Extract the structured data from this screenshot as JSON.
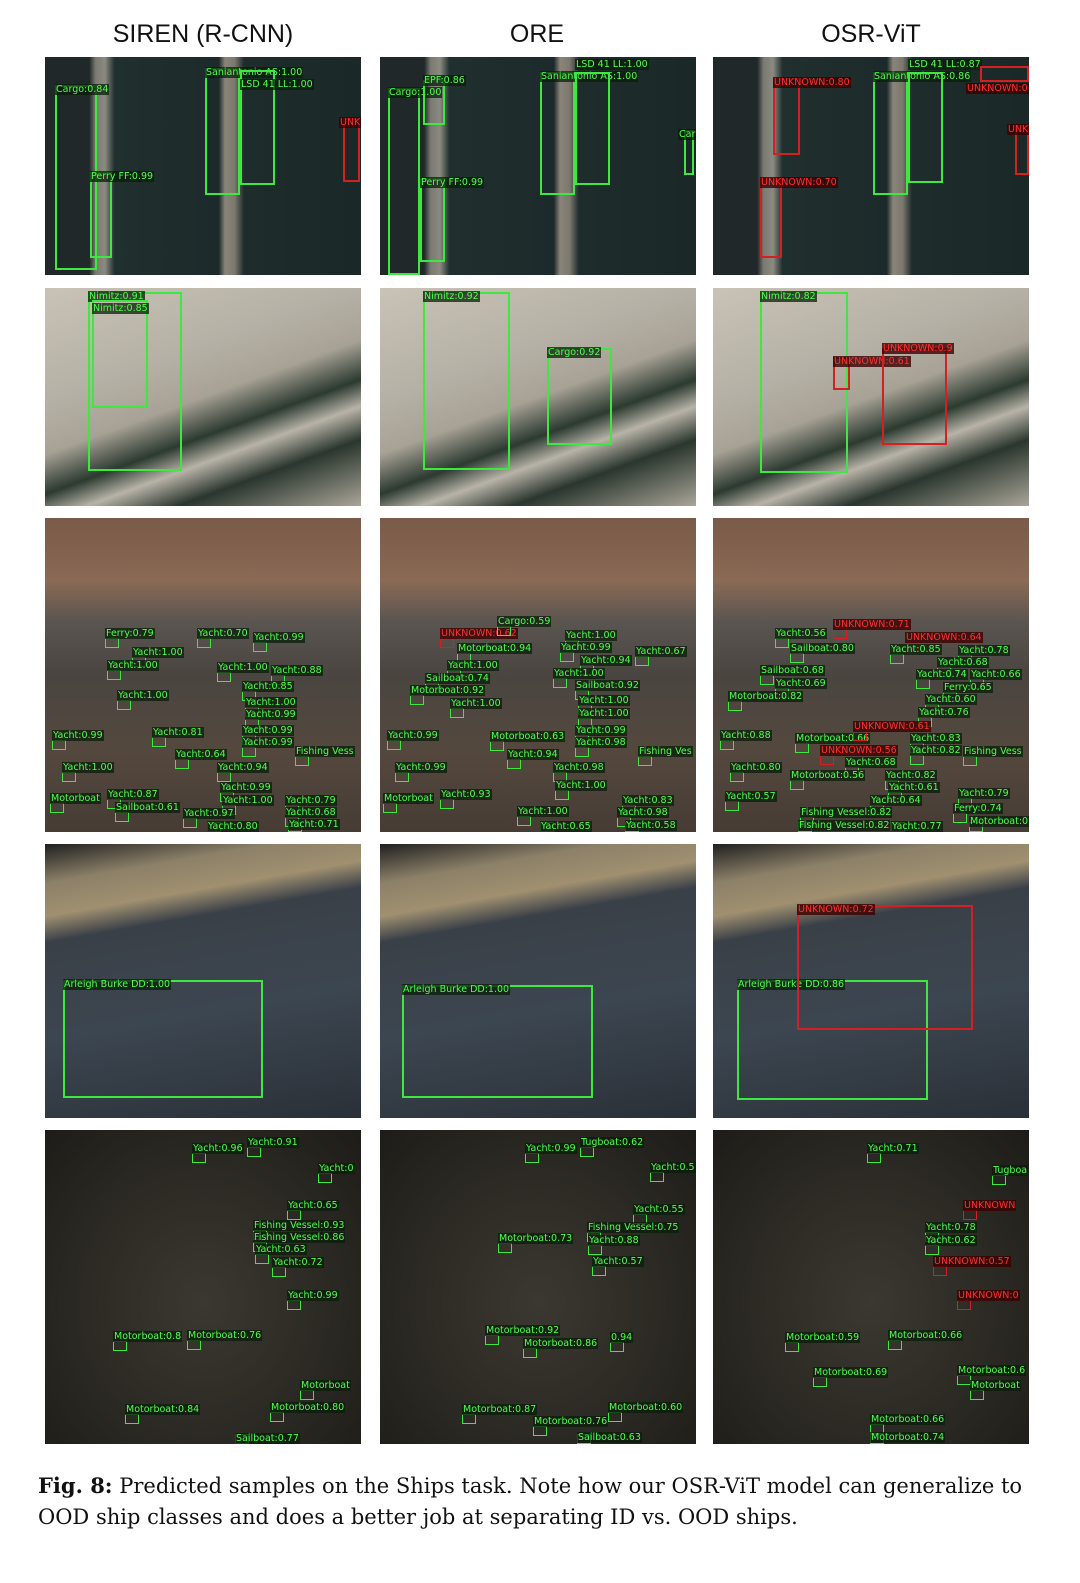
{
  "columns": [
    "SIREN (R-CNN)",
    "ORE",
    "OSR-ViT"
  ],
  "rows": [
    {
      "panels": [
        [
          {
            "l": "Cargo:0.84",
            "u": 0
          },
          {
            "l": "Perry FF:0.99",
            "u": 0
          },
          {
            "l": "Saniantonio AS:1.00",
            "u": 0
          },
          {
            "l": "LSD 41 LL:1.00",
            "u": 0
          },
          {
            "l": "UNK",
            "u": 1
          }
        ],
        [
          {
            "l": "Cargo:1.00",
            "u": 0
          },
          {
            "l": "EPF:0.86",
            "u": 0
          },
          {
            "l": "Perry FF:0.99",
            "u": 0
          },
          {
            "l": "Saniantonio AS:1.00",
            "u": 0
          },
          {
            "l": "LSD 41 LL:1.00",
            "u": 0
          },
          {
            "l": "Car",
            "u": 0
          }
        ],
        [
          {
            "l": "UNKNOWN:0.80",
            "u": 1
          },
          {
            "l": "UNKNOWN:0.70",
            "u": 1
          },
          {
            "l": "Saniantonio AS:0.86",
            "u": 0
          },
          {
            "l": "LSD 41 LL:0.87",
            "u": 0
          },
          {
            "l": "UNKNOWN:0",
            "u": 1
          },
          {
            "l": "UNK",
            "u": 1
          }
        ]
      ]
    },
    {
      "panels": [
        [
          {
            "l": "Nimitz:0.91",
            "u": 0
          },
          {
            "l": "Nimitz:0.85",
            "u": 0
          }
        ],
        [
          {
            "l": "Nimitz:0.92",
            "u": 0
          },
          {
            "l": "Cargo:0.92",
            "u": 0
          }
        ],
        [
          {
            "l": "Nimitz:0.82",
            "u": 0
          },
          {
            "l": "UNKNOWN:0.61",
            "u": 1
          },
          {
            "l": "UNKNOWN:0.9",
            "u": 1
          }
        ]
      ]
    },
    {
      "panels": [
        [
          {
            "l": "Ferry:0.79",
            "u": 0
          },
          {
            "l": "Yacht:0.70",
            "u": 0
          },
          {
            "l": "Yacht:0.99",
            "u": 0
          },
          {
            "l": "Yacht:1.00",
            "u": 0
          },
          {
            "l": "Yacht:1.00",
            "u": 0
          },
          {
            "l": "Yacht:1.00",
            "u": 0
          },
          {
            "l": "Yacht:0.88",
            "u": 0
          },
          {
            "l": "Yacht:0.85",
            "u": 0
          },
          {
            "l": "Yacht:1.00",
            "u": 0
          },
          {
            "l": "Yacht:1.00",
            "u": 0
          },
          {
            "l": "Yacht:0.99",
            "u": 0
          },
          {
            "l": "Yacht:0.81",
            "u": 0
          },
          {
            "l": "Yacht:0.99",
            "u": 0
          },
          {
            "l": "Yacht:0.99",
            "u": 0
          },
          {
            "l": "Yacht:0.99",
            "u": 0
          },
          {
            "l": "Yacht:0.64",
            "u": 0
          },
          {
            "l": "Fishing Vess",
            "u": 0
          },
          {
            "l": "Yacht:0.94",
            "u": 0
          },
          {
            "l": "Yacht:1.00",
            "u": 0
          },
          {
            "l": "Yacht:0.99",
            "u": 0
          },
          {
            "l": "Motorboat",
            "u": 0
          },
          {
            "l": "Yacht:0.87",
            "u": 0
          },
          {
            "l": "Sailboat:0.61",
            "u": 0
          },
          {
            "l": "Yacht:1.00",
            "u": 0
          },
          {
            "l": "Yacht:0.79",
            "u": 0
          },
          {
            "l": "Yacht:0.68",
            "u": 0
          },
          {
            "l": "Yacht:0.97",
            "u": 0
          },
          {
            "l": "Yacht:0.71",
            "u": 0
          },
          {
            "l": "Yacht:0.80",
            "u": 0
          }
        ],
        [
          {
            "l": "UNKNOWN:0.62",
            "u": 1
          },
          {
            "l": "Cargo:0.59",
            "u": 0
          },
          {
            "l": "Yacht:1.00",
            "u": 0
          },
          {
            "l": "Motorboat:0.94",
            "u": 0
          },
          {
            "l": "Yacht:0.99",
            "u": 0
          },
          {
            "l": "Yacht:0.94",
            "u": 0
          },
          {
            "l": "Yacht:0.67",
            "u": 0
          },
          {
            "l": "Yacht:1.00",
            "u": 0
          },
          {
            "l": "Yacht:1.00",
            "u": 0
          },
          {
            "l": "Sailboat:0.74",
            "u": 0
          },
          {
            "l": "Motorboat:0.92",
            "u": 0
          },
          {
            "l": "Sailboat:0.92",
            "u": 0
          },
          {
            "l": "Yacht:1.00",
            "u": 0
          },
          {
            "l": "Yacht:1.00",
            "u": 0
          },
          {
            "l": "Yacht:1.00",
            "u": 0
          },
          {
            "l": "Yacht:0.99",
            "u": 0
          },
          {
            "l": "Motorboat:0.63",
            "u": 0
          },
          {
            "l": "Yacht:0.99",
            "u": 0
          },
          {
            "l": "Yacht:0.98",
            "u": 0
          },
          {
            "l": "Yacht:0.94",
            "u": 0
          },
          {
            "l": "Fishing Ves",
            "u": 0
          },
          {
            "l": "Yacht:0.99",
            "u": 0
          },
          {
            "l": "Yacht:0.98",
            "u": 0
          },
          {
            "l": "Yacht:1.00",
            "u": 0
          },
          {
            "l": "Motorboat",
            "u": 0
          },
          {
            "l": "Yacht:0.93",
            "u": 0
          },
          {
            "l": "Yacht:0.83",
            "u": 0
          },
          {
            "l": "Yacht:1.00",
            "u": 0
          },
          {
            "l": "Yacht:0.98",
            "u": 0
          },
          {
            "l": "Yacht:0.58",
            "u": 0
          },
          {
            "l": "Yacht:0.65",
            "u": 0
          }
        ],
        [
          {
            "l": "Yacht:0.56",
            "u": 0
          },
          {
            "l": "UNKNOWN:0.71",
            "u": 1
          },
          {
            "l": "UNKNOWN:0.64",
            "u": 1
          },
          {
            "l": "Sailboat:0.80",
            "u": 0
          },
          {
            "l": "Yacht:0.85",
            "u": 0
          },
          {
            "l": "Yacht:0.78",
            "u": 0
          },
          {
            "l": "Yacht:0.68",
            "u": 0
          },
          {
            "l": "Yacht:0.66",
            "u": 0
          },
          {
            "l": "Sailboat:0.68",
            "u": 0
          },
          {
            "l": "Ferry:0.65",
            "u": 0
          },
          {
            "l": "Yacht:0.69",
            "u": 0
          },
          {
            "l": "Yacht:0.74",
            "u": 0
          },
          {
            "l": "Motorboat:0.82",
            "u": 0
          },
          {
            "l": "Yacht:0.60",
            "u": 0
          },
          {
            "l": "Yacht:0.76",
            "u": 0
          },
          {
            "l": "Yacht:0.88",
            "u": 0
          },
          {
            "l": "Motorboat:0.66",
            "u": 0
          },
          {
            "l": "UNKNOWN:0.61",
            "u": 1
          },
          {
            "l": "UNKNOWN:0.56",
            "u": 1
          },
          {
            "l": "Yacht:0.83",
            "u": 0
          },
          {
            "l": "Yacht:0.82",
            "u": 0
          },
          {
            "l": "Fishing Vess",
            "u": 0
          },
          {
            "l": "Yacht:0.68",
            "u": 0
          },
          {
            "l": "Yacht:0.80",
            "u": 0
          },
          {
            "l": "Motorboat:0.56",
            "u": 0
          },
          {
            "l": "Yacht:0.82",
            "u": 0
          },
          {
            "l": "Yacht:0.61",
            "u": 0
          },
          {
            "l": "Yacht:0.57",
            "u": 0
          },
          {
            "l": "Yacht:0.64",
            "u": 0
          },
          {
            "l": "Yacht:0.79",
            "u": 0
          },
          {
            "l": "Fishing Vessel:0.82",
            "u": 0
          },
          {
            "l": "Ferry:0.74",
            "u": 0
          },
          {
            "l": "Fishing Vessel:0.82",
            "u": 0
          },
          {
            "l": "Motorboat:0",
            "u": 0
          },
          {
            "l": "Yacht:0.77",
            "u": 0
          }
        ]
      ]
    },
    {
      "panels": [
        [
          {
            "l": "Arleigh Burke DD:1.00",
            "u": 0
          }
        ],
        [
          {
            "l": "Arleigh Burke DD:1.00",
            "u": 0
          }
        ],
        [
          {
            "l": "Arleigh Burke DD:0.86",
            "u": 0
          },
          {
            "l": "UNKNOWN:0.72",
            "u": 1
          }
        ]
      ]
    },
    {
      "panels": [
        [
          {
            "l": "Yacht:0.96",
            "u": 0
          },
          {
            "l": "Yacht:0.91",
            "u": 0
          },
          {
            "l": "Yacht:0",
            "u": 0
          },
          {
            "l": "Yacht:0.65",
            "u": 0
          },
          {
            "l": "Fishing Vessel:0.93",
            "u": 0
          },
          {
            "l": "Fishing Vessel:0.86",
            "u": 0
          },
          {
            "l": "Yacht:0.63",
            "u": 0
          },
          {
            "l": "Yacht:0.72",
            "u": 0
          },
          {
            "l": "Yacht:0.99",
            "u": 0
          },
          {
            "l": "Motorboat:0.8",
            "u": 0
          },
          {
            "l": "Motorboat:0.76",
            "u": 0
          },
          {
            "l": "Motorboat",
            "u": 0
          },
          {
            "l": "Motorboat:0.84",
            "u": 0
          },
          {
            "l": "Motorboat:0.80",
            "u": 0
          },
          {
            "l": "Sailboat:0.77",
            "u": 0
          }
        ],
        [
          {
            "l": "Yacht:0.99",
            "u": 0
          },
          {
            "l": "Tugboat:0.62",
            "u": 0
          },
          {
            "l": "Yacht:0.5",
            "u": 0
          },
          {
            "l": "Yacht:0.55",
            "u": 0
          },
          {
            "l": "Fishing Vessel:0.75",
            "u": 0
          },
          {
            "l": "Motorboat:0.73",
            "u": 0
          },
          {
            "l": "Yacht:0.88",
            "u": 0
          },
          {
            "l": "Yacht:0.57",
            "u": 0
          },
          {
            "l": "Motorboat:0.92",
            "u": 0
          },
          {
            "l": "Motorboat:0.86",
            "u": 0
          },
          {
            "l": "0.94",
            "u": 0
          },
          {
            "l": "Motorboat:0.87",
            "u": 0
          },
          {
            "l": "Motorboat:0.60",
            "u": 0
          },
          {
            "l": "Motorboat:0.76",
            "u": 0
          },
          {
            "l": "Sailboat:0.63",
            "u": 0
          }
        ],
        [
          {
            "l": "Yacht:0.71",
            "u": 0
          },
          {
            "l": "Tugboa",
            "u": 0
          },
          {
            "l": "UNKNOWN",
            "u": 1
          },
          {
            "l": "Yacht:0.78",
            "u": 0
          },
          {
            "l": "Yacht:0.62",
            "u": 0
          },
          {
            "l": "UNKNOWN:0.57",
            "u": 1
          },
          {
            "l": "UNKNOWN:0",
            "u": 1
          },
          {
            "l": "Motorboat:0.59",
            "u": 0
          },
          {
            "l": "Motorboat:0.66",
            "u": 0
          },
          {
            "l": "Motorboat:0.69",
            "u": 0
          },
          {
            "l": "Motorboat:0.6",
            "u": 0
          },
          {
            "l": "Motorboat",
            "u": 0
          },
          {
            "l": "Motorboat:0.66",
            "u": 0
          },
          {
            "l": "Motorboat:0.74",
            "u": 0
          }
        ]
      ]
    }
  ],
  "colors": {
    "known_box": "#3ee83e",
    "unknown_box": "#d42020"
  },
  "caption": {
    "label": "Fig. 8:",
    "text": " Predicted samples on the Ships task. Note how our OSR-ViT model can generalize to OOD ship classes and does a better job at separating ID vs. OOD ships."
  }
}
